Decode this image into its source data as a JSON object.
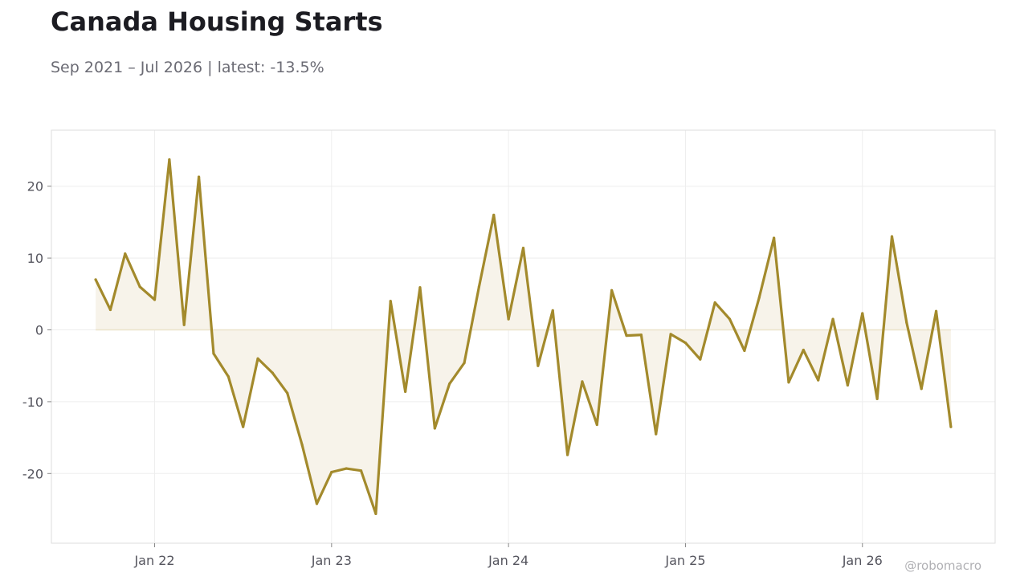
{
  "header": {
    "title": "Canada Housing Starts",
    "subtitle": "Sep 2021 – Jul 2026 | latest: -13.5%"
  },
  "watermark": "@robomacro",
  "chart_data": {
    "type": "line",
    "title": "Canada Housing Starts",
    "subtitle": "Sep 2021 – Jul 2026 | latest: -13.5%",
    "xlabel": "",
    "ylabel": "",
    "x_start": "2021-09",
    "x_end": "2026-07",
    "x_ticks": [
      {
        "date": "2022-01",
        "label": "Jan 22"
      },
      {
        "date": "2023-01",
        "label": "Jan 23"
      },
      {
        "date": "2024-01",
        "label": "Jan 24"
      },
      {
        "date": "2025-01",
        "label": "Jan 25"
      },
      {
        "date": "2026-01",
        "label": "Jan 26"
      }
    ],
    "y_ticks": [
      20,
      10,
      0,
      -10,
      -20
    ],
    "ylim": [
      -29.7,
      27.8
    ],
    "grid": true,
    "fill_to_zero": true,
    "colors": {
      "line": "#a38a2c",
      "fill": "#f7f3ea",
      "zero_line": "#ece3ca",
      "grid": "#eeeeee",
      "frame": "#dddddd"
    },
    "series": [
      {
        "values": [
          7.0,
          2.8,
          10.6,
          6.0,
          4.2,
          23.7,
          0.7,
          21.3,
          -3.3,
          -6.5,
          -13.5,
          -4.0,
          -6.0,
          -8.8,
          -16.0,
          -24.2,
          -19.8,
          -19.3,
          -19.6,
          -25.6,
          4.0,
          -8.6,
          5.9,
          -13.7,
          -7.5,
          -4.6,
          6.0,
          16.0,
          1.5,
          11.4,
          -5.0,
          2.7,
          -17.4,
          -7.2,
          -13.2,
          5.5,
          -0.8,
          -0.7,
          -14.5,
          -0.6,
          -1.8,
          -4.1,
          3.8,
          1.5,
          -2.9,
          4.5,
          12.8,
          -7.3,
          -2.8,
          -7.0,
          1.5,
          -7.7,
          2.3,
          -9.6,
          13.0,
          1.0,
          -8.2,
          2.6,
          -13.5
        ]
      }
    ]
  }
}
